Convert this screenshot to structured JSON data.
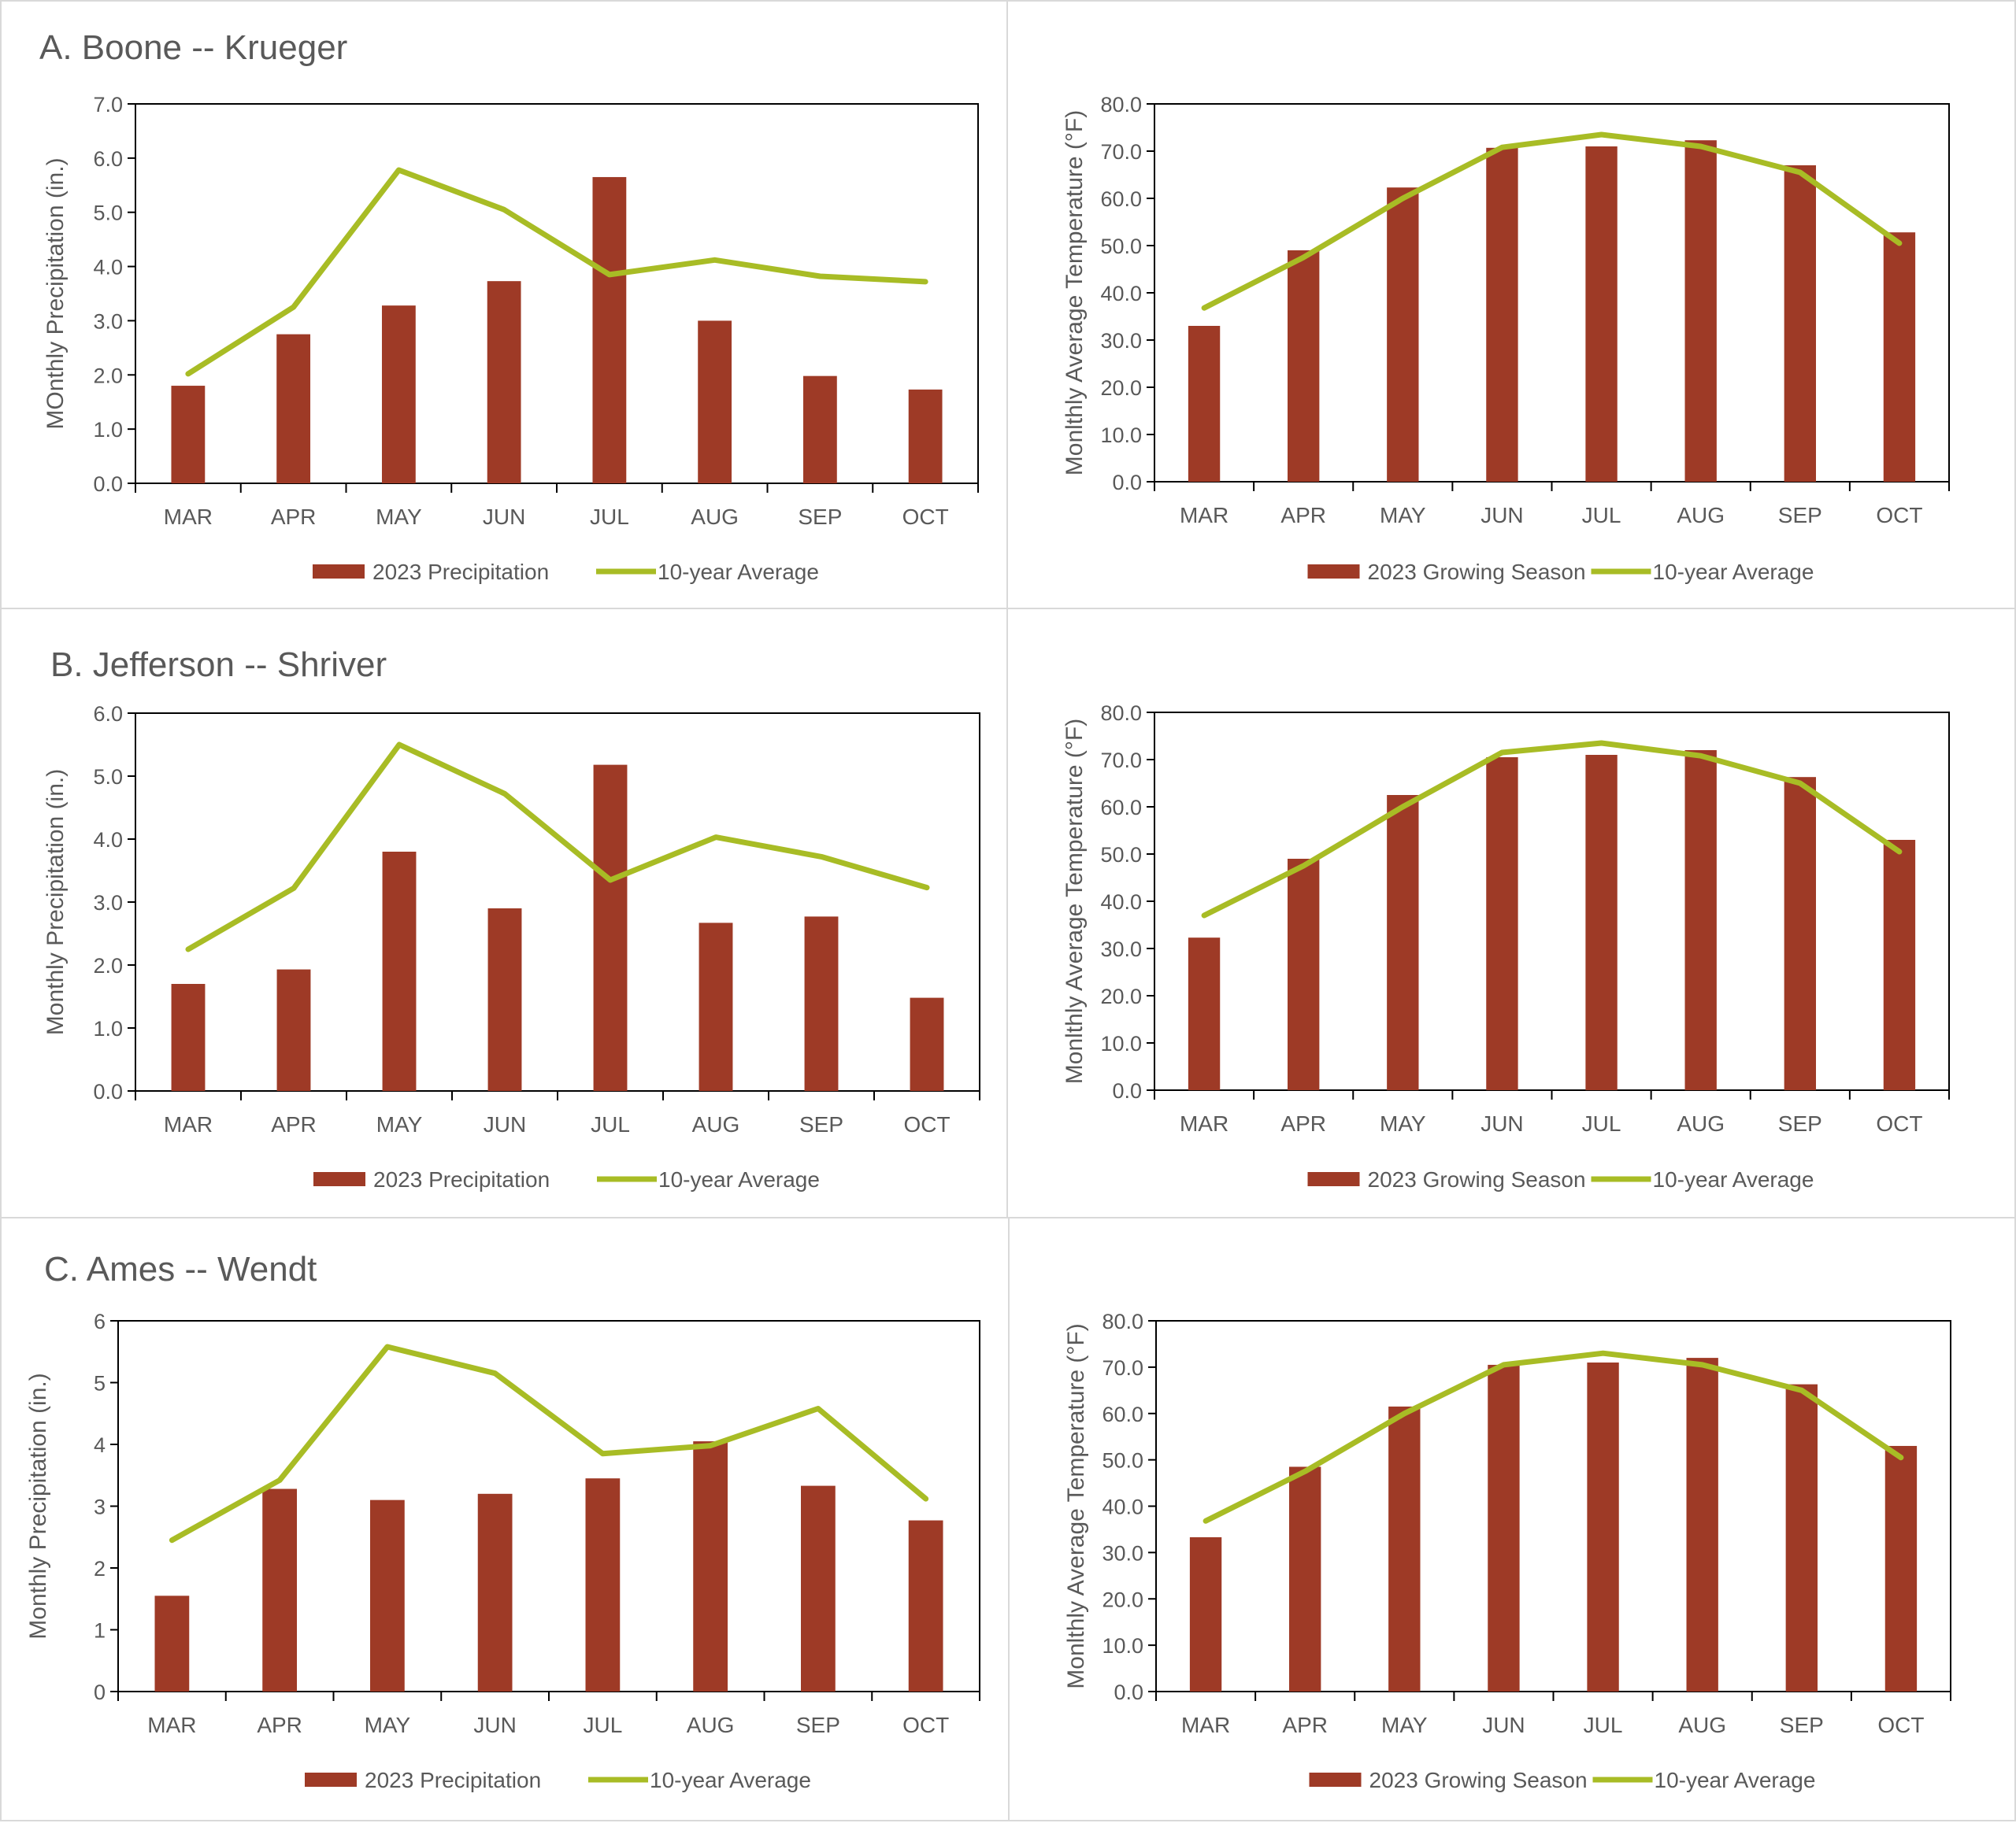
{
  "colors": {
    "bar": "#9e3a26",
    "line": "#a8bc25",
    "axis": "#000000",
    "text": "#595959",
    "panel_border": "#d9d9d9"
  },
  "chart_data": [
    {
      "id": "boone-precip",
      "type": "bar+line",
      "title": "A. Boone -- Krueger",
      "categories": [
        "MAR",
        "APR",
        "MAY",
        "JUN",
        "JUL",
        "AUG",
        "SEP",
        "OCT"
      ],
      "ylabel": "MOnthly Precipitation (in.)",
      "ylim": [
        0,
        7
      ],
      "yticks": [
        "0.0",
        "1.0",
        "2.0",
        "3.0",
        "4.0",
        "5.0",
        "6.0",
        "7.0"
      ],
      "series": [
        {
          "name": "2023 Precipitation",
          "kind": "bar",
          "values": [
            1.8,
            2.75,
            3.28,
            3.73,
            5.65,
            3.0,
            1.98,
            1.73
          ]
        },
        {
          "name": "10-year Average",
          "kind": "line",
          "values": [
            2.02,
            3.25,
            5.78,
            5.05,
            3.85,
            4.12,
            3.82,
            3.72
          ]
        }
      ],
      "legend": "bottom"
    },
    {
      "id": "boone-temp",
      "type": "bar+line",
      "title": "",
      "categories": [
        "MAR",
        "APR",
        "MAY",
        "JUN",
        "JUL",
        "AUG",
        "SEP",
        "OCT"
      ],
      "ylabel": "Monlthly Average Temperature (°F)",
      "ylim": [
        0,
        80
      ],
      "yticks": [
        "0.0",
        "10.0",
        "20.0",
        "30.0",
        "40.0",
        "50.0",
        "60.0",
        "70.0",
        "80.0"
      ],
      "series": [
        {
          "name": "2023 Growing Season",
          "kind": "bar",
          "values": [
            33.0,
            49.0,
            62.3,
            70.7,
            71.0,
            72.3,
            67.0,
            52.8
          ]
        },
        {
          "name": "10-year Average",
          "kind": "line",
          "values": [
            36.8,
            47.5,
            60.0,
            70.8,
            73.5,
            71.0,
            65.5,
            50.5
          ]
        }
      ],
      "legend": "bottom"
    },
    {
      "id": "jefferson-precip",
      "type": "bar+line",
      "title": "B. Jefferson -- Shriver",
      "categories": [
        "MAR",
        "APR",
        "MAY",
        "JUN",
        "JUL",
        "AUG",
        "SEP",
        "OCT"
      ],
      "ylabel": "Monthly Precipitation (in.)",
      "ylim": [
        0,
        6
      ],
      "yticks": [
        "0.0",
        "1.0",
        "2.0",
        "3.0",
        "4.0",
        "5.0",
        "6.0"
      ],
      "series": [
        {
          "name": "2023 Precipitation",
          "kind": "bar",
          "values": [
            1.7,
            1.93,
            3.8,
            2.9,
            5.18,
            2.67,
            2.77,
            1.48
          ]
        },
        {
          "name": "10-year Average",
          "kind": "line",
          "values": [
            2.25,
            3.22,
            5.5,
            4.72,
            3.35,
            4.03,
            3.72,
            3.23
          ]
        }
      ],
      "legend": "bottom"
    },
    {
      "id": "jefferson-temp",
      "type": "bar+line",
      "title": "",
      "categories": [
        "MAR",
        "APR",
        "MAY",
        "JUN",
        "JUL",
        "AUG",
        "SEP",
        "OCT"
      ],
      "ylabel": "Monlthly Average Temperature (°F)",
      "ylim": [
        0,
        80
      ],
      "yticks": [
        "0.0",
        "10.0",
        "20.0",
        "30.0",
        "40.0",
        "50.0",
        "60.0",
        "70.0",
        "80.0"
      ],
      "series": [
        {
          "name": "2023 Growing Season",
          "kind": "bar",
          "values": [
            32.3,
            49.0,
            62.5,
            70.5,
            71.0,
            72.0,
            66.3,
            53.0
          ]
        },
        {
          "name": "10-year Average",
          "kind": "line",
          "values": [
            37.0,
            47.5,
            60.0,
            71.5,
            73.5,
            70.8,
            65.0,
            50.5
          ]
        }
      ],
      "legend": "bottom"
    },
    {
      "id": "ames-precip",
      "type": "bar+line",
      "title": "C. Ames -- Wendt",
      "categories": [
        "MAR",
        "APR",
        "MAY",
        "JUN",
        "JUL",
        "AUG",
        "SEP",
        "OCT"
      ],
      "ylabel": "Monthly Precipitation (in.)",
      "ylim": [
        0,
        6
      ],
      "yticks": [
        "0",
        "1",
        "2",
        "3",
        "4",
        "5",
        "6"
      ],
      "series": [
        {
          "name": "2023 Precipitation",
          "kind": "bar",
          "values": [
            1.55,
            3.28,
            3.1,
            3.2,
            3.45,
            4.05,
            3.33,
            2.77
          ]
        },
        {
          "name": "10-year Average",
          "kind": "line",
          "values": [
            2.45,
            3.42,
            5.58,
            5.15,
            3.85,
            3.98,
            4.58,
            3.12
          ]
        }
      ],
      "legend": "bottom"
    },
    {
      "id": "ames-temp",
      "type": "bar+line",
      "title": "",
      "categories": [
        "MAR",
        "APR",
        "MAY",
        "JUN",
        "JUL",
        "AUG",
        "SEP",
        "OCT"
      ],
      "ylabel": "Monlthly Average Temperature (°F)",
      "ylim": [
        0,
        80
      ],
      "yticks": [
        "0.0",
        "10.0",
        "20.0",
        "30.0",
        "40.0",
        "50.0",
        "60.0",
        "70.0",
        "80.0"
      ],
      "series": [
        {
          "name": "2023 Growing Season",
          "kind": "bar",
          "values": [
            33.3,
            48.5,
            61.5,
            70.5,
            71.0,
            72.0,
            66.3,
            53.0
          ]
        },
        {
          "name": "10-year Average",
          "kind": "line",
          "values": [
            36.8,
            47.5,
            60.0,
            70.5,
            73.0,
            70.5,
            65.0,
            50.5
          ]
        }
      ],
      "legend": "bottom"
    }
  ]
}
